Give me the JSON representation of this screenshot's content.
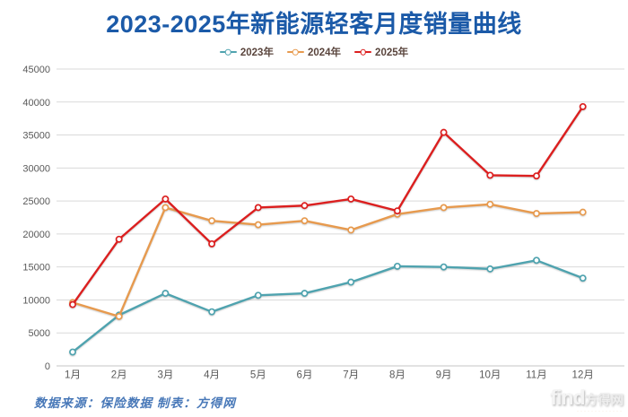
{
  "title": "2023-2025年新能源轻客月度销量曲线",
  "source_note": "数据来源：保险数据 制表：方得网",
  "watermark": {
    "logo": "find",
    "cn": "方得网",
    "sub": "·············"
  },
  "styles": {
    "title_color": "#1b5aa8",
    "axis_label_color": "#595959",
    "grid_color": "#d9d9d9",
    "axis_line_color": "#c6c6c6",
    "legend_text_color": "#5a453d",
    "source_color": "#4878b8"
  },
  "chart_data": {
    "type": "line",
    "title": "2023-2025年新能源轻客月度销量曲线",
    "categories": [
      "1月",
      "2月",
      "3月",
      "4月",
      "5月",
      "6月",
      "7月",
      "8月",
      "9月",
      "10月",
      "11月",
      "12月"
    ],
    "series": [
      {
        "name": "2023年",
        "color": "#4fa3af",
        "values": [
          2100,
          7700,
          11000,
          8200,
          10700,
          11000,
          12700,
          15100,
          15000,
          14700,
          16000,
          13300
        ]
      },
      {
        "name": "2024年",
        "color": "#e79a4e",
        "values": [
          9600,
          7500,
          24000,
          22000,
          21400,
          22000,
          20600,
          23000,
          24000,
          24500,
          23100,
          23300
        ]
      },
      {
        "name": "2025年",
        "color": "#dc1f1f",
        "values": [
          9300,
          19200,
          25300,
          18500,
          24000,
          24300,
          25300,
          23500,
          35400,
          28900,
          28800,
          39300
        ]
      }
    ],
    "xlabel": "",
    "ylabel": "",
    "ylim": [
      0,
      45000
    ],
    "ytick_interval": 5000,
    "grid": true,
    "legend_position": "top"
  }
}
